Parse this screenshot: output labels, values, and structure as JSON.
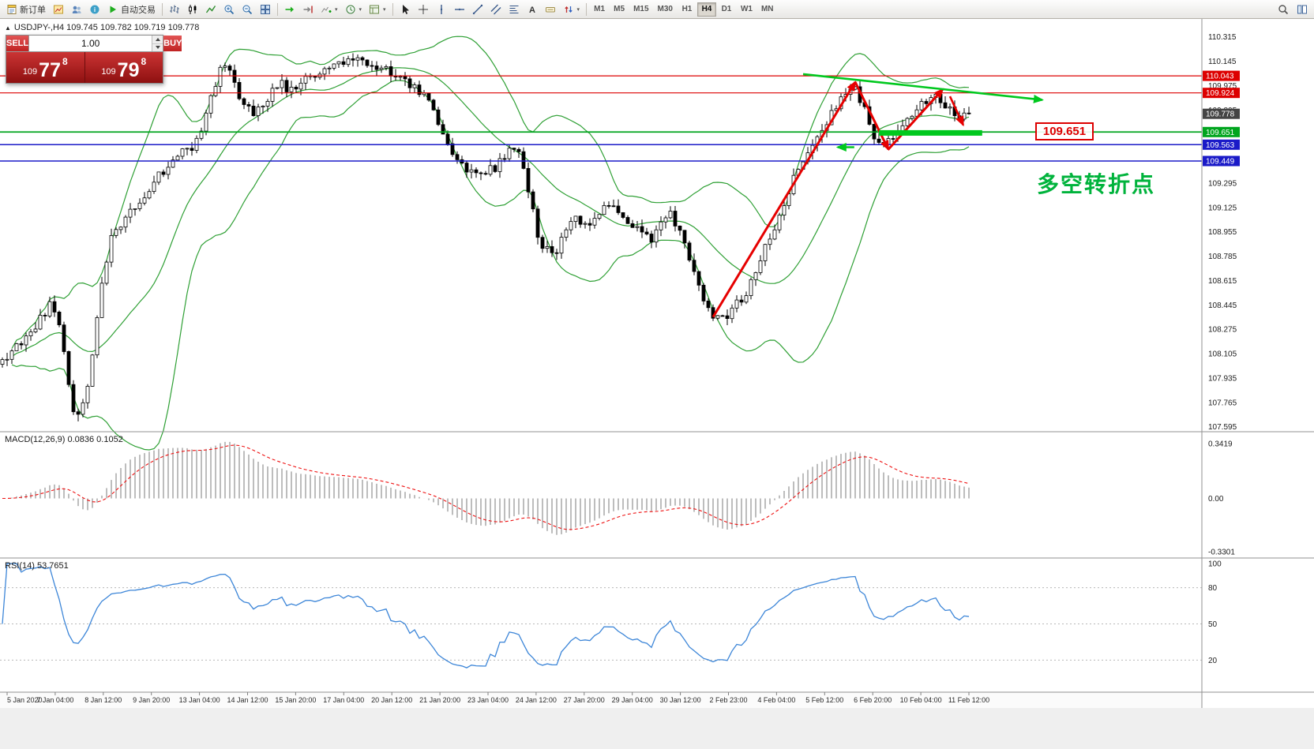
{
  "toolbar": {
    "left_items": [
      {
        "icon": "new-order",
        "label": "新订单",
        "name": "new-order-button"
      },
      {
        "icon": "chart-window",
        "name": "new-chart-button"
      },
      {
        "icon": "profiles",
        "name": "profiles-button"
      },
      {
        "icon": "info",
        "name": "help-button"
      },
      {
        "icon": "autoplay",
        "label": "自动交易",
        "name": "autotrading-button"
      },
      {
        "sep": true
      },
      {
        "icon": "bars",
        "name": "bar-chart-mode-button"
      },
      {
        "icon": "candles",
        "name": "candlestick-mode-button"
      },
      {
        "icon": "linechart",
        "name": "line-chart-mode-button"
      },
      {
        "icon": "zoom-in",
        "name": "zoom-in-button"
      },
      {
        "icon": "zoom-out",
        "name": "zoom-out-button"
      },
      {
        "icon": "tile",
        "name": "tile-windows-button"
      },
      {
        "sep": true
      },
      {
        "icon": "autoscroll",
        "name": "auto-scroll-button"
      },
      {
        "icon": "shift",
        "name": "chart-shift-button"
      },
      {
        "icon": "indicators",
        "name": "indicators-button",
        "dropdown": true
      },
      {
        "icon": "periods",
        "name": "periods-button",
        "dropdown": true
      },
      {
        "icon": "template",
        "name": "templates-button",
        "dropdown": true
      },
      {
        "sep": true
      },
      {
        "icon": "cursor",
        "name": "cursor-tool-button"
      },
      {
        "icon": "crosshair",
        "name": "crosshair-tool-button"
      },
      {
        "icon": "vline",
        "name": "vertical-line-tool-button"
      },
      {
        "icon": "hline",
        "name": "horizontal-line-tool-button"
      },
      {
        "icon": "trendline",
        "name": "trendline-tool-button"
      },
      {
        "icon": "channel",
        "name": "channel-tool-button"
      },
      {
        "icon": "fibo",
        "name": "fibonacci-tool-button"
      },
      {
        "icon": "text",
        "name": "text-tool-button"
      },
      {
        "icon": "label",
        "name": "text-label-tool-button"
      },
      {
        "icon": "arrows",
        "name": "arrows-tool-button",
        "dropdown": true
      },
      {
        "sep": true
      }
    ],
    "timeframes": [
      {
        "label": "M1"
      },
      {
        "label": "M5"
      },
      {
        "label": "M15"
      },
      {
        "label": "M30"
      },
      {
        "label": "H1"
      },
      {
        "label": "H4",
        "active": true
      },
      {
        "label": "D1"
      },
      {
        "label": "W1"
      },
      {
        "label": "MN"
      }
    ],
    "right_items": [
      {
        "icon": "search",
        "name": "search-button"
      },
      {
        "icon": "panes",
        "name": "window-panes-button"
      }
    ]
  },
  "symbol_header": {
    "text": "USDJPY-,H4 109.745 109.782 109.719 109.778"
  },
  "trade_panel": {
    "sell_label": "SELL",
    "buy_label": "BUY",
    "volume": "1.00",
    "sell_price_small": "109",
    "sell_price_big": "77",
    "sell_price_sup": "8",
    "buy_price_small": "109",
    "buy_price_big": "79",
    "buy_price_sup": "8"
  },
  "chart_data": {
    "type": "candlestick",
    "symbol": "USDJPY-",
    "timeframe": "H4",
    "ohlc_display": {
      "open": "109.745",
      "high": "109.782",
      "low": "109.719",
      "close": "109.778"
    },
    "candle_count": 205,
    "y_range": [
      107.56,
      110.44
    ],
    "price_axis_labels": [
      "110.315",
      "110.145",
      "109.975",
      "109.805",
      "109.635",
      "109.465",
      "109.295",
      "109.125",
      "108.955",
      "108.785",
      "108.615",
      "108.445",
      "108.275",
      "108.105",
      "107.935",
      "107.765",
      "107.595"
    ],
    "time_axis_labels": [
      "5 Jan 2020",
      "7 Jan 04:00",
      "8 Jan 12:00",
      "9 Jan 20:00",
      "13 Jan 04:00",
      "14 Jan 12:00",
      "15 Jan 20:00",
      "17 Jan 04:00",
      "20 Jan 12:00",
      "21 Jan 20:00",
      "23 Jan 04:00",
      "24 Jan 12:00",
      "27 Jan 20:00",
      "29 Jan 04:00",
      "30 Jan 12:00",
      "2 Feb 23:00",
      "4 Feb 04:00",
      "5 Feb 12:00",
      "6 Feb 20:00",
      "10 Feb 04:00",
      "11 Feb 12:00"
    ],
    "price_path_waypoints": [
      [
        0,
        108.05
      ],
      [
        3,
        108.12
      ],
      [
        6,
        108.22
      ],
      [
        9,
        108.36
      ],
      [
        11,
        108.46
      ],
      [
        13,
        108.3
      ],
      [
        14,
        108.05
      ],
      [
        15,
        107.76
      ],
      [
        16,
        107.63
      ],
      [
        17,
        107.74
      ],
      [
        19,
        107.9
      ],
      [
        21,
        108.48
      ],
      [
        22,
        108.7
      ],
      [
        24,
        108.95
      ],
      [
        27,
        109.08
      ],
      [
        30,
        109.18
      ],
      [
        33,
        109.33
      ],
      [
        37,
        109.48
      ],
      [
        41,
        109.56
      ],
      [
        44,
        109.8
      ],
      [
        46,
        110.05
      ],
      [
        48,
        110.15
      ],
      [
        50,
        109.92
      ],
      [
        53,
        109.78
      ],
      [
        56,
        109.86
      ],
      [
        59,
        110.0
      ],
      [
        62,
        109.92
      ],
      [
        65,
        110.02
      ],
      [
        68,
        110.08
      ],
      [
        72,
        110.12
      ],
      [
        76,
        110.15
      ],
      [
        80,
        110.1
      ],
      [
        84,
        110.06
      ],
      [
        87,
        109.97
      ],
      [
        90,
        109.88
      ],
      [
        93,
        109.7
      ],
      [
        96,
        109.46
      ],
      [
        99,
        109.36
      ],
      [
        102,
        109.34
      ],
      [
        105,
        109.42
      ],
      [
        108,
        109.56
      ],
      [
        110,
        109.46
      ],
      [
        112,
        109.18
      ],
      [
        114,
        108.86
      ],
      [
        117,
        108.78
      ],
      [
        121,
        109.06
      ],
      [
        125,
        109.0
      ],
      [
        128,
        109.16
      ],
      [
        131,
        109.1
      ],
      [
        135,
        108.96
      ],
      [
        138,
        108.9
      ],
      [
        141,
        109.1
      ],
      [
        144,
        108.96
      ],
      [
        147,
        108.62
      ],
      [
        149,
        108.44
      ],
      [
        151,
        108.35
      ],
      [
        153,
        108.34
      ],
      [
        155,
        108.44
      ],
      [
        157,
        108.48
      ],
      [
        159,
        108.62
      ],
      [
        161,
        108.8
      ],
      [
        163,
        108.95
      ],
      [
        166,
        109.2
      ],
      [
        169,
        109.42
      ],
      [
        172,
        109.62
      ],
      [
        175,
        109.74
      ],
      [
        178,
        109.9
      ],
      [
        180,
        110.0
      ],
      [
        182,
        109.86
      ],
      [
        184,
        109.64
      ],
      [
        186,
        109.55
      ],
      [
        188,
        109.6
      ],
      [
        190,
        109.68
      ],
      [
        192,
        109.73
      ],
      [
        194,
        109.82
      ],
      [
        196,
        109.9
      ],
      [
        197,
        109.94
      ],
      [
        199,
        109.86
      ],
      [
        201,
        109.8
      ],
      [
        203,
        109.74
      ],
      [
        204,
        109.78
      ]
    ],
    "levels": [
      {
        "price": 110.043,
        "label": "110.043",
        "color": "#dd0000",
        "line_width": 1.2
      },
      {
        "price": 109.924,
        "label": "109.924",
        "color": "#dd0000",
        "line_width": 1.2
      },
      {
        "price": 109.778,
        "label": "109.778",
        "color": "#444444",
        "line_width": 0,
        "current": true
      },
      {
        "price": 109.651,
        "label": "109.651",
        "color": "#00a51e",
        "line_width": 1.7
      },
      {
        "price": 109.563,
        "label": "109.563",
        "color": "#1a1ac8",
        "line_width": 1.5
      },
      {
        "price": 109.449,
        "label": "109.449",
        "color": "#1a1ac8",
        "line_width": 1.5
      }
    ],
    "indicators": {
      "bollinger": {
        "period": 20,
        "deviation": 2,
        "color": "#2fa035"
      },
      "macd": {
        "label": "MACD(12,26,9) 0.0836 0.1052",
        "axis": [
          "0.3419",
          "0.00",
          "-0.3301"
        ],
        "histogram_color": "#bdbdbd",
        "signal_color": "#ee1111"
      },
      "rsi": {
        "label": "RSI(14) 53.7651",
        "axis": [
          "100",
          "80",
          "50",
          "20"
        ],
        "levels": [
          80,
          50,
          20
        ],
        "line_color": "#3d86d8"
      }
    },
    "annotations": {
      "zigzag": [
        [
          150,
          108.36
        ],
        [
          180,
          110.0
        ],
        [
          187,
          109.53
        ],
        [
          198.5,
          109.95
        ]
      ],
      "final_arrow": [
        [
          200,
          109.9
        ],
        [
          202.8,
          109.7
        ]
      ],
      "trendline": [
        [
          169,
          110.055
        ],
        [
          219.5,
          109.875
        ]
      ],
      "support_bar": {
        "from_idx": 185,
        "to_idx": 206.8,
        "price": 109.645
      },
      "left_arrow": {
        "from_idx": 179.8,
        "to_idx": 176.3,
        "price": 109.545
      },
      "price_label": {
        "text": "109.651"
      },
      "note": {
        "text": "多空转折点"
      }
    }
  }
}
